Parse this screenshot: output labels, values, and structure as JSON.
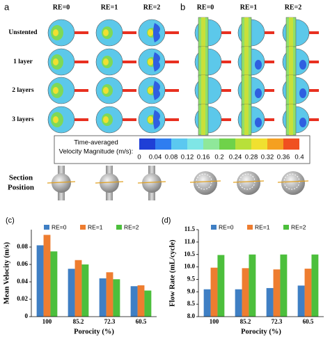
{
  "panel_a": {
    "label": "a",
    "columns": [
      "RE=0",
      "RE=1",
      "RE=2"
    ],
    "rows": [
      "Unstented",
      "1 layer",
      "2 layers",
      "3 layers"
    ]
  },
  "panel_b": {
    "label": "b",
    "columns": [
      "RE=0",
      "RE=1",
      "RE=2"
    ]
  },
  "colorbar": {
    "title_lines": [
      "Time-averaged",
      "Velocity Magnitude (m/s):"
    ],
    "ticks": [
      0,
      0.04,
      0.08,
      0.12,
      0.16,
      0.2,
      0.24,
      0.28,
      0.32,
      0.36,
      0.4
    ],
    "colors": [
      "#1f3fd6",
      "#2f7df0",
      "#5bc8f0",
      "#7fe6e6",
      "#8fe89a",
      "#6fd24a",
      "#b8e03a",
      "#f0e030",
      "#f5a020",
      "#f05020"
    ]
  },
  "section_label": [
    "Section",
    "Position"
  ],
  "chart_data": [
    {
      "type": "bar",
      "panel_label": "(c)",
      "x_label": "Porocity (%)",
      "y_label": "Mean Velocity (m/s)",
      "categories": [
        "100",
        "85.2",
        "72.3",
        "60.5"
      ],
      "series": [
        {
          "name": "RE=0",
          "color": "#3f7fc4",
          "values": [
            0.082,
            0.055,
            0.044,
            0.035
          ]
        },
        {
          "name": "RE=1",
          "color": "#ee7d30",
          "values": [
            0.094,
            0.065,
            0.051,
            0.036
          ]
        },
        {
          "name": "RE=2",
          "color": "#4cbf3c",
          "values": [
            0.075,
            0.06,
            0.043,
            0.03
          ]
        }
      ],
      "ylim": [
        0,
        0.1
      ],
      "yticks": [
        0,
        0.02,
        0.04,
        0.06,
        0.08
      ]
    },
    {
      "type": "bar",
      "panel_label": "(d)",
      "x_label": "Porocity (%)",
      "y_label": "Flow Rate (mL/cycle)",
      "categories": [
        "100",
        "85.2",
        "72.3",
        "60.5"
      ],
      "series": [
        {
          "name": "RE=0",
          "color": "#3f7fc4",
          "values": [
            9.1,
            9.1,
            9.15,
            9.25
          ]
        },
        {
          "name": "RE=1",
          "color": "#ee7d30",
          "values": [
            9.97,
            9.95,
            9.9,
            9.93
          ]
        },
        {
          "name": "RE=2",
          "color": "#4cbf3c",
          "values": [
            10.48,
            10.5,
            10.5,
            10.5
          ]
        }
      ],
      "ylim": [
        8,
        11.5
      ],
      "yticks": [
        {
          "value": 8,
          "label": "8.0"
        },
        8.5,
        {
          "value": 9,
          "label": "9.0"
        },
        9.5,
        {
          "value": 10,
          "label": "10.0"
        },
        10.5,
        {
          "value": 11,
          "label": "11.0"
        },
        11.5
      ]
    }
  ]
}
